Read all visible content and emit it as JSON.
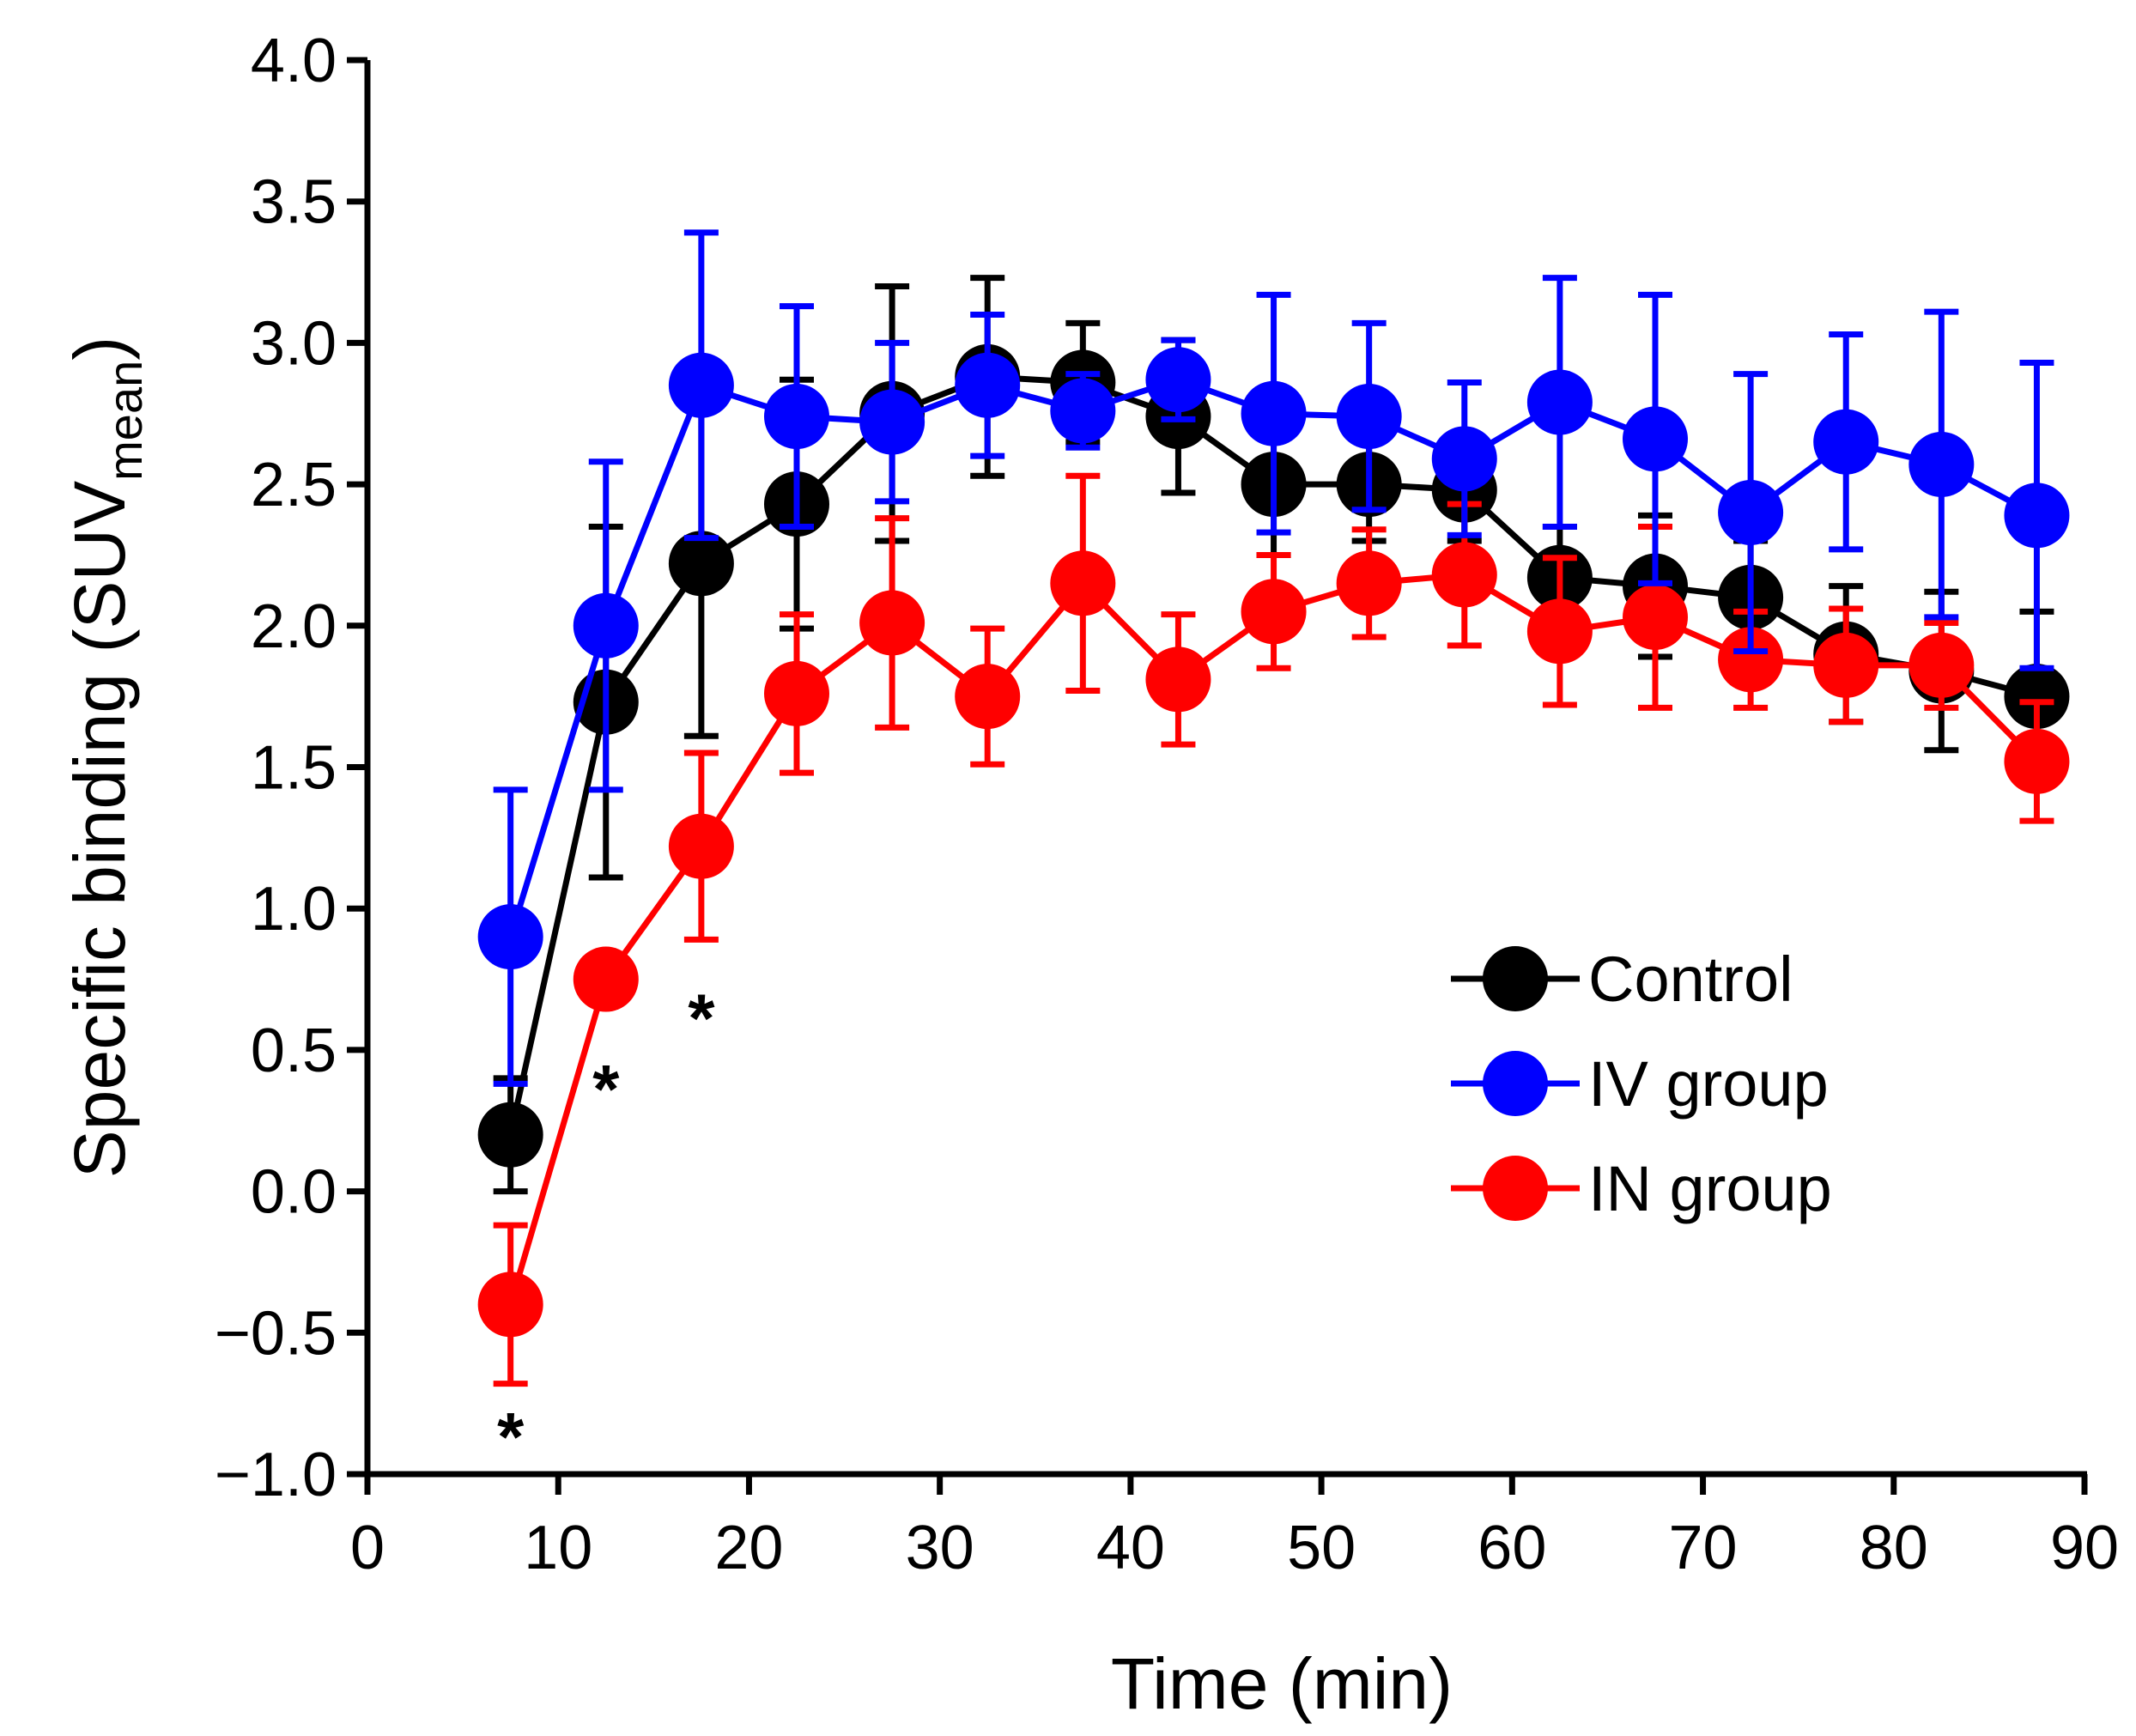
{
  "chart_data": {
    "type": "line",
    "title": "",
    "xlabel": "Time (min)",
    "ylabel_main": "Specific binding (SUV",
    "ylabel_sub": "mean",
    "ylabel_close": ")",
    "xlim": [
      0,
      90
    ],
    "ylim": [
      -1.0,
      4.0
    ],
    "x_ticks": [
      {
        "value": 0,
        "label": "0"
      },
      {
        "value": 10,
        "label": "10"
      },
      {
        "value": 20,
        "label": "20"
      },
      {
        "value": 30,
        "label": "30"
      },
      {
        "value": 40,
        "label": "40"
      },
      {
        "value": 50,
        "label": "50"
      },
      {
        "value": 60,
        "label": "60"
      },
      {
        "value": 70,
        "label": "70"
      },
      {
        "value": 80,
        "label": "80"
      },
      {
        "value": 90,
        "label": "90"
      }
    ],
    "y_ticks": [
      {
        "value": 4.0,
        "label": "4.0"
      },
      {
        "value": 3.5,
        "label": "3.5"
      },
      {
        "value": 3.0,
        "label": "3.0"
      },
      {
        "value": 2.5,
        "label": "2.5"
      },
      {
        "value": 2.0,
        "label": "2.0"
      },
      {
        "value": 1.5,
        "label": "1.5"
      },
      {
        "value": 1.0,
        "label": "1.0"
      },
      {
        "value": 0.5,
        "label": "0.5"
      },
      {
        "value": 0.0,
        "label": "0.0"
      },
      {
        "value": -0.5,
        "label": "−0.5"
      },
      {
        "value": -1.0,
        "label": "−1.0"
      }
    ],
    "grid": false,
    "legend_position": "right-middle",
    "x": [
      7.5,
      12.5,
      17.5,
      22.5,
      27.5,
      32.5,
      37.5,
      42.5,
      47.5,
      52.5,
      57.5,
      62.5,
      67.5,
      72.5,
      77.5,
      82.5,
      87.5
    ],
    "series": [
      {
        "name": "Control",
        "color": "#000000",
        "values": [
          0.2,
          1.73,
          2.22,
          2.43,
          2.75,
          2.88,
          2.86,
          2.74,
          2.5,
          2.5,
          2.48,
          2.17,
          2.14,
          2.1,
          1.9,
          1.84,
          1.75
        ],
        "errors": [
          0.2,
          0.62,
          0.61,
          0.44,
          0.45,
          0.35,
          0.21,
          0.27,
          0.25,
          0.2,
          0.18,
          0.18,
          0.25,
          0.2,
          0.24,
          0.28,
          0.3
        ]
      },
      {
        "name": "IV group",
        "color": "#0000ff",
        "values": [
          0.9,
          2.0,
          2.85,
          2.74,
          2.72,
          2.85,
          2.76,
          2.87,
          2.75,
          2.74,
          2.59,
          2.79,
          2.66,
          2.4,
          2.65,
          2.57,
          2.39
        ],
        "errors": [
          0.52,
          0.58,
          0.54,
          0.39,
          0.28,
          0.25,
          0.13,
          0.14,
          0.42,
          0.33,
          0.27,
          0.44,
          0.51,
          0.49,
          0.38,
          0.54,
          0.54
        ]
      },
      {
        "name": "IN group",
        "color": "#ff0000",
        "values": [
          -0.4,
          0.75,
          1.22,
          1.76,
          2.01,
          1.75,
          2.15,
          1.81,
          2.05,
          2.15,
          2.18,
          1.98,
          2.03,
          1.88,
          1.86,
          1.86,
          1.52
        ],
        "errors": [
          0.28,
          0.0,
          0.33,
          0.28,
          0.37,
          0.24,
          0.38,
          0.23,
          0.2,
          0.19,
          0.25,
          0.26,
          0.32,
          0.17,
          0.2,
          0.15,
          0.21
        ]
      }
    ],
    "annotations": [
      {
        "text": "*",
        "x": 7.5,
        "y": -0.83
      },
      {
        "text": "*",
        "x": 12.5,
        "y": 0.4
      },
      {
        "text": "*",
        "x": 17.5,
        "y": 0.65
      }
    ]
  }
}
